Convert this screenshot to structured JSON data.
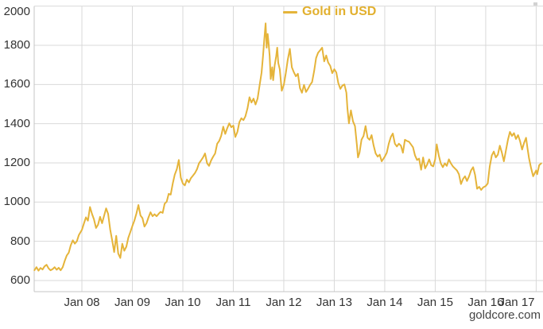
{
  "page": {
    "watermark": "goldcore.com",
    "background": "#ffffff"
  },
  "legend": {
    "symbol_color": "#E5B43A",
    "label": "Gold in USD",
    "text_color": "#E2B02E"
  },
  "chart_data": {
    "type": "line",
    "title": "",
    "xlabel": "",
    "ylabel": "",
    "grid": true,
    "legend_position": "top-center",
    "grid_color": "#d9d9d9",
    "axis_line_color": "#c6c6c6",
    "label_color": "#333333",
    "xlim": [
      2007.055,
      2017.135
    ],
    "ylim": [
      543,
      2000
    ],
    "x_ticks": [
      {
        "label": "Jan 08",
        "x": 2008
      },
      {
        "label": "Jan 09",
        "x": 2009
      },
      {
        "label": "Jan 10",
        "x": 2010
      },
      {
        "label": "Jan 11",
        "x": 2011
      },
      {
        "label": "Jan 12",
        "x": 2012
      },
      {
        "label": "Jan 13",
        "x": 2013
      },
      {
        "label": "Jan 14",
        "x": 2014
      },
      {
        "label": "Jan 15",
        "x": 2015
      },
      {
        "label": "Jan 16",
        "x": 2016
      },
      {
        "label": "Jan 17",
        "x": 2017
      }
    ],
    "y_ticks": [
      {
        "label": "600",
        "v": 600
      },
      {
        "label": "800",
        "v": 800
      },
      {
        "label": "1000",
        "v": 1000
      },
      {
        "label": "1200",
        "v": 1200
      },
      {
        "label": "1400",
        "v": 1400
      },
      {
        "label": "1600",
        "v": 1600
      },
      {
        "label": "1800",
        "v": 1800
      },
      {
        "label": "2000",
        "v": 2000
      }
    ],
    "series": [
      {
        "name": "Gold in USD",
        "color": "#E5B43A",
        "points": [
          [
            2007.06,
            652
          ],
          [
            2007.1,
            668
          ],
          [
            2007.14,
            650
          ],
          [
            2007.18,
            664
          ],
          [
            2007.22,
            656
          ],
          [
            2007.26,
            672
          ],
          [
            2007.3,
            680
          ],
          [
            2007.34,
            662
          ],
          [
            2007.38,
            652
          ],
          [
            2007.42,
            658
          ],
          [
            2007.46,
            668
          ],
          [
            2007.5,
            655
          ],
          [
            2007.54,
            665
          ],
          [
            2007.58,
            652
          ],
          [
            2007.62,
            668
          ],
          [
            2007.66,
            700
          ],
          [
            2007.7,
            728
          ],
          [
            2007.74,
            742
          ],
          [
            2007.78,
            780
          ],
          [
            2007.82,
            805
          ],
          [
            2007.86,
            788
          ],
          [
            2007.9,
            800
          ],
          [
            2007.94,
            832
          ],
          [
            2008.0,
            858
          ],
          [
            2008.04,
            890
          ],
          [
            2008.08,
            922
          ],
          [
            2008.12,
            905
          ],
          [
            2008.16,
            975
          ],
          [
            2008.2,
            940
          ],
          [
            2008.24,
            912
          ],
          [
            2008.28,
            868
          ],
          [
            2008.32,
            885
          ],
          [
            2008.36,
            925
          ],
          [
            2008.4,
            892
          ],
          [
            2008.44,
            930
          ],
          [
            2008.48,
            968
          ],
          [
            2008.52,
            940
          ],
          [
            2008.56,
            860
          ],
          [
            2008.6,
            805
          ],
          [
            2008.64,
            745
          ],
          [
            2008.68,
            828
          ],
          [
            2008.72,
            738
          ],
          [
            2008.76,
            715
          ],
          [
            2008.8,
            788
          ],
          [
            2008.84,
            752
          ],
          [
            2008.88,
            772
          ],
          [
            2008.92,
            818
          ],
          [
            2008.96,
            848
          ],
          [
            2009.0,
            878
          ],
          [
            2009.04,
            905
          ],
          [
            2009.08,
            942
          ],
          [
            2009.12,
            985
          ],
          [
            2009.16,
            932
          ],
          [
            2009.2,
            918
          ],
          [
            2009.24,
            875
          ],
          [
            2009.28,
            892
          ],
          [
            2009.32,
            922
          ],
          [
            2009.36,
            948
          ],
          [
            2009.4,
            928
          ],
          [
            2009.44,
            938
          ],
          [
            2009.48,
            928
          ],
          [
            2009.52,
            940
          ],
          [
            2009.56,
            950
          ],
          [
            2009.6,
            945
          ],
          [
            2009.64,
            992
          ],
          [
            2009.68,
            1002
          ],
          [
            2009.72,
            1042
          ],
          [
            2009.76,
            1038
          ],
          [
            2009.8,
            1095
          ],
          [
            2009.84,
            1140
          ],
          [
            2009.88,
            1168
          ],
          [
            2009.92,
            1215
          ],
          [
            2009.96,
            1125
          ],
          [
            2010.0,
            1095
          ],
          [
            2010.04,
            1085
          ],
          [
            2010.08,
            1115
          ],
          [
            2010.12,
            1100
          ],
          [
            2010.16,
            1122
          ],
          [
            2010.2,
            1135
          ],
          [
            2010.24,
            1148
          ],
          [
            2010.28,
            1168
          ],
          [
            2010.32,
            1198
          ],
          [
            2010.36,
            1212
          ],
          [
            2010.4,
            1228
          ],
          [
            2010.44,
            1248
          ],
          [
            2010.48,
            1198
          ],
          [
            2010.52,
            1185
          ],
          [
            2010.56,
            1212
          ],
          [
            2010.6,
            1232
          ],
          [
            2010.64,
            1248
          ],
          [
            2010.68,
            1298
          ],
          [
            2010.72,
            1312
          ],
          [
            2010.76,
            1338
          ],
          [
            2010.8,
            1385
          ],
          [
            2010.84,
            1348
          ],
          [
            2010.88,
            1378
          ],
          [
            2010.92,
            1402
          ],
          [
            2010.96,
            1382
          ],
          [
            2011.0,
            1390
          ],
          [
            2011.04,
            1332
          ],
          [
            2011.08,
            1358
          ],
          [
            2011.12,
            1408
          ],
          [
            2011.16,
            1428
          ],
          [
            2011.2,
            1418
          ],
          [
            2011.24,
            1438
          ],
          [
            2011.28,
            1478
          ],
          [
            2011.32,
            1535
          ],
          [
            2011.36,
            1508
          ],
          [
            2011.4,
            1528
          ],
          [
            2011.44,
            1498
          ],
          [
            2011.48,
            1528
          ],
          [
            2011.52,
            1595
          ],
          [
            2011.56,
            1660
          ],
          [
            2011.59,
            1748
          ],
          [
            2011.61,
            1818
          ],
          [
            2011.64,
            1912
          ],
          [
            2011.66,
            1788
          ],
          [
            2011.68,
            1858
          ],
          [
            2011.7,
            1808
          ],
          [
            2011.72,
            1745
          ],
          [
            2011.74,
            1628
          ],
          [
            2011.77,
            1688
          ],
          [
            2011.79,
            1622
          ],
          [
            2011.82,
            1698
          ],
          [
            2011.85,
            1745
          ],
          [
            2011.87,
            1788
          ],
          [
            2011.89,
            1710
          ],
          [
            2011.92,
            1678
          ],
          [
            2011.96,
            1568
          ],
          [
            2012.0,
            1598
          ],
          [
            2012.04,
            1658
          ],
          [
            2012.08,
            1728
          ],
          [
            2012.12,
            1782
          ],
          [
            2012.16,
            1688
          ],
          [
            2012.2,
            1662
          ],
          [
            2012.24,
            1642
          ],
          [
            2012.28,
            1655
          ],
          [
            2012.32,
            1582
          ],
          [
            2012.36,
            1558
          ],
          [
            2012.4,
            1598
          ],
          [
            2012.44,
            1562
          ],
          [
            2012.48,
            1578
          ],
          [
            2012.52,
            1598
          ],
          [
            2012.56,
            1612
          ],
          [
            2012.6,
            1668
          ],
          [
            2012.64,
            1735
          ],
          [
            2012.68,
            1762
          ],
          [
            2012.72,
            1775
          ],
          [
            2012.76,
            1788
          ],
          [
            2012.8,
            1718
          ],
          [
            2012.84,
            1748
          ],
          [
            2012.88,
            1712
          ],
          [
            2012.92,
            1695
          ],
          [
            2012.96,
            1658
          ],
          [
            2013.0,
            1678
          ],
          [
            2013.04,
            1662
          ],
          [
            2013.08,
            1608
          ],
          [
            2013.12,
            1578
          ],
          [
            2013.16,
            1594
          ],
          [
            2013.2,
            1600
          ],
          [
            2013.24,
            1558
          ],
          [
            2013.26,
            1478
          ],
          [
            2013.29,
            1402
          ],
          [
            2013.33,
            1468
          ],
          [
            2013.37,
            1412
          ],
          [
            2013.41,
            1388
          ],
          [
            2013.45,
            1288
          ],
          [
            2013.47,
            1228
          ],
          [
            2013.5,
            1252
          ],
          [
            2013.54,
            1318
          ],
          [
            2013.58,
            1338
          ],
          [
            2013.62,
            1388
          ],
          [
            2013.66,
            1328
          ],
          [
            2013.7,
            1318
          ],
          [
            2013.74,
            1342
          ],
          [
            2013.78,
            1288
          ],
          [
            2013.82,
            1248
          ],
          [
            2013.86,
            1232
          ],
          [
            2013.9,
            1242
          ],
          [
            2013.94,
            1208
          ],
          [
            2014.0,
            1232
          ],
          [
            2014.04,
            1252
          ],
          [
            2014.08,
            1298
          ],
          [
            2014.12,
            1332
          ],
          [
            2014.16,
            1350
          ],
          [
            2014.2,
            1298
          ],
          [
            2014.24,
            1284
          ],
          [
            2014.28,
            1298
          ],
          [
            2014.32,
            1288
          ],
          [
            2014.36,
            1252
          ],
          [
            2014.4,
            1318
          ],
          [
            2014.44,
            1312
          ],
          [
            2014.48,
            1308
          ],
          [
            2014.52,
            1294
          ],
          [
            2014.56,
            1280
          ],
          [
            2014.6,
            1238
          ],
          [
            2014.64,
            1215
          ],
          [
            2014.68,
            1222
          ],
          [
            2014.72,
            1165
          ],
          [
            2014.76,
            1228
          ],
          [
            2014.8,
            1172
          ],
          [
            2014.84,
            1192
          ],
          [
            2014.88,
            1218
          ],
          [
            2014.92,
            1188
          ],
          [
            2014.96,
            1182
          ],
          [
            2015.0,
            1218
          ],
          [
            2015.03,
            1295
          ],
          [
            2015.07,
            1238
          ],
          [
            2015.11,
            1198
          ],
          [
            2015.15,
            1178
          ],
          [
            2015.19,
            1198
          ],
          [
            2015.23,
            1185
          ],
          [
            2015.27,
            1218
          ],
          [
            2015.31,
            1198
          ],
          [
            2015.35,
            1182
          ],
          [
            2015.39,
            1172
          ],
          [
            2015.43,
            1162
          ],
          [
            2015.47,
            1142
          ],
          [
            2015.51,
            1092
          ],
          [
            2015.55,
            1118
          ],
          [
            2015.59,
            1132
          ],
          [
            2015.63,
            1108
          ],
          [
            2015.67,
            1132
          ],
          [
            2015.71,
            1162
          ],
          [
            2015.75,
            1178
          ],
          [
            2015.79,
            1138
          ],
          [
            2015.83,
            1068
          ],
          [
            2015.87,
            1078
          ],
          [
            2015.91,
            1062
          ],
          [
            2015.95,
            1075
          ],
          [
            2016.0,
            1082
          ],
          [
            2016.04,
            1095
          ],
          [
            2016.08,
            1182
          ],
          [
            2016.12,
            1238
          ],
          [
            2016.16,
            1258
          ],
          [
            2016.2,
            1228
          ],
          [
            2016.24,
            1242
          ],
          [
            2016.28,
            1288
          ],
          [
            2016.32,
            1252
          ],
          [
            2016.36,
            1208
          ],
          [
            2016.4,
            1262
          ],
          [
            2016.44,
            1318
          ],
          [
            2016.48,
            1358
          ],
          [
            2016.52,
            1338
          ],
          [
            2016.56,
            1352
          ],
          [
            2016.6,
            1322
          ],
          [
            2016.64,
            1342
          ],
          [
            2016.68,
            1312
          ],
          [
            2016.72,
            1268
          ],
          [
            2016.76,
            1302
          ],
          [
            2016.8,
            1328
          ],
          [
            2016.83,
            1272
          ],
          [
            2016.86,
            1222
          ],
          [
            2016.9,
            1172
          ],
          [
            2016.94,
            1132
          ],
          [
            2017.0,
            1162
          ],
          [
            2017.02,
            1142
          ],
          [
            2017.06,
            1188
          ],
          [
            2017.1,
            1198
          ]
        ]
      }
    ]
  }
}
